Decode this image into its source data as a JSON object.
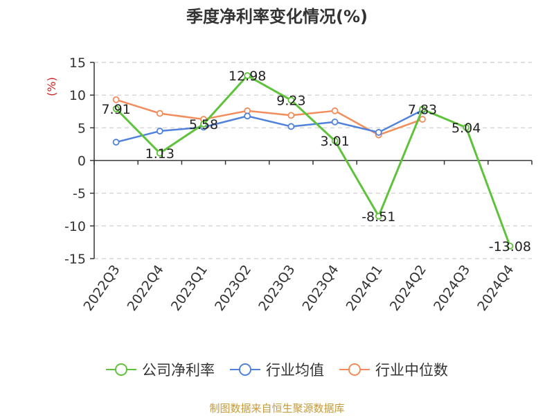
{
  "chart_data": {
    "type": "line",
    "title": "季度净利率变化情况(%)",
    "ylabel": "(%)",
    "categories": [
      "2022Q3",
      "2022Q4",
      "2023Q1",
      "2023Q2",
      "2023Q3",
      "2023Q4",
      "2024Q1",
      "2024Q2",
      "2024Q3",
      "2024Q4"
    ],
    "ylim": [
      -15,
      15
    ],
    "yticks": [
      15,
      10,
      5,
      0,
      -5,
      -10,
      -15
    ],
    "grid": true,
    "legend_position": "bottom",
    "series": [
      {
        "name": "公司净利率",
        "color": "#5ec23a",
        "values": [
          7.91,
          1.13,
          5.58,
          12.98,
          9.23,
          3.01,
          -8.51,
          7.83,
          5.04,
          -13.08
        ],
        "labels": [
          "7.91",
          "1.13",
          "5.58",
          "12.98",
          "9.23",
          "3.01",
          "-8.51",
          "7.83",
          "5.04",
          "-13.08"
        ]
      },
      {
        "name": "行业均值",
        "color": "#5082dc",
        "values": [
          2.8,
          4.5,
          5.1,
          6.8,
          5.2,
          5.9,
          4.3,
          7.7,
          null,
          null
        ]
      },
      {
        "name": "行业中位数",
        "color": "#f28c5a",
        "values": [
          9.3,
          7.2,
          6.3,
          7.6,
          6.9,
          7.6,
          3.9,
          6.3,
          null,
          null
        ]
      }
    ]
  },
  "footer": "制图数据来自恒生聚源数据库"
}
